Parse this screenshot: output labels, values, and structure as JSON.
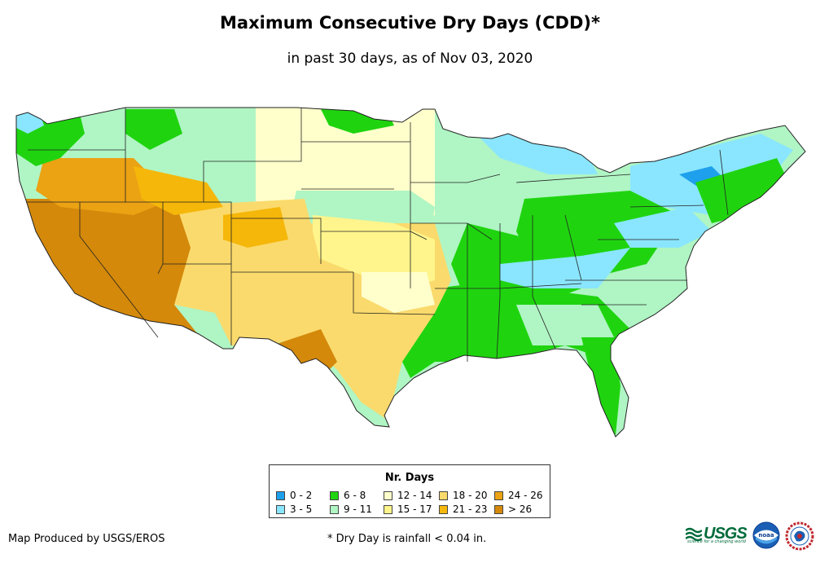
{
  "title": "Maximum Consecutive Dry Days (CDD)*",
  "subtitle": "in past 30 days, as of Nov 03, 2020",
  "legend": {
    "title": "Nr. Days",
    "classes": [
      {
        "label": "0 - 2",
        "color": "#1ea0ec"
      },
      {
        "label": "3 - 5",
        "color": "#8ae6ff"
      },
      {
        "label": "6 - 8",
        "color": "#1fd40f"
      },
      {
        "label": "9 - 11",
        "color": "#b0f5c4"
      },
      {
        "label": "12 - 14",
        "color": "#ffffcc"
      },
      {
        "label": "15 - 17",
        "color": "#fff58c"
      },
      {
        "label": "18 - 20",
        "color": "#fada6c"
      },
      {
        "label": "21 - 23",
        "color": "#f5b70a"
      },
      {
        "label": "24 - 26",
        "color": "#eba213"
      },
      {
        "label": "> 26",
        "color": "#d4890b"
      }
    ]
  },
  "credit": "Map Produced by USGS/EROS",
  "footnote": "* Dry Day is rainfall < 0.04 in.",
  "logos": {
    "usgs_text": "USGS",
    "usgs_tagline": "science for a changing world",
    "noaa_text": "noaa"
  }
}
